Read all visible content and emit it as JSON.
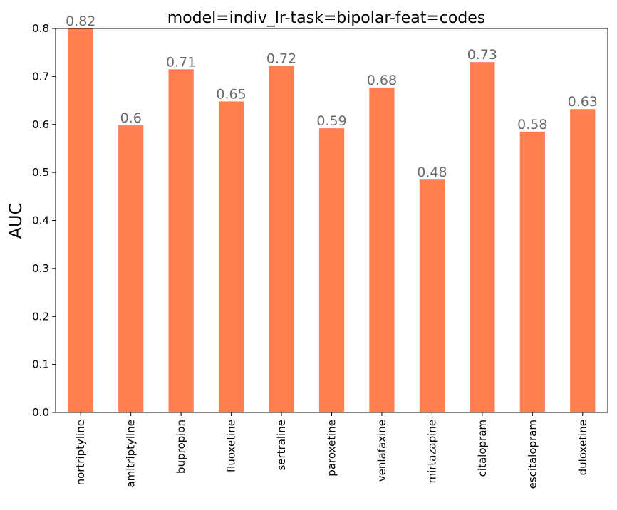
{
  "chart_data": {
    "type": "bar",
    "title": "model=indiv_lr-task=bipolar-feat=codes",
    "xlabel": "",
    "ylabel": "AUC",
    "ylim": [
      0,
      0.8
    ],
    "yticks": [
      0.0,
      0.1,
      0.2,
      0.3,
      0.4,
      0.5,
      0.6,
      0.7,
      0.8
    ],
    "ytick_labels": [
      "0.0",
      "0.1",
      "0.2",
      "0.3",
      "0.4",
      "0.5",
      "0.6",
      "0.7",
      "0.8"
    ],
    "categories": [
      "nortriptyline",
      "amitriptyline",
      "bupropion",
      "fluoxetine",
      "sertraline",
      "paroxetine",
      "venlafaxine",
      "mirtazapine",
      "citalopram",
      "escitalopram",
      "duloxetine"
    ],
    "values": [
      0.82,
      0.598,
      0.715,
      0.648,
      0.722,
      0.592,
      0.677,
      0.485,
      0.73,
      0.585,
      0.632
    ],
    "value_labels": [
      "0.82",
      "0.6",
      "0.71",
      "0.65",
      "0.72",
      "0.59",
      "0.68",
      "0.48",
      "0.73",
      "0.58",
      "0.63"
    ],
    "bar_color": "#ff7f50",
    "data_label_color": "#6b6b6b",
    "grid": false,
    "legend": "none"
  }
}
